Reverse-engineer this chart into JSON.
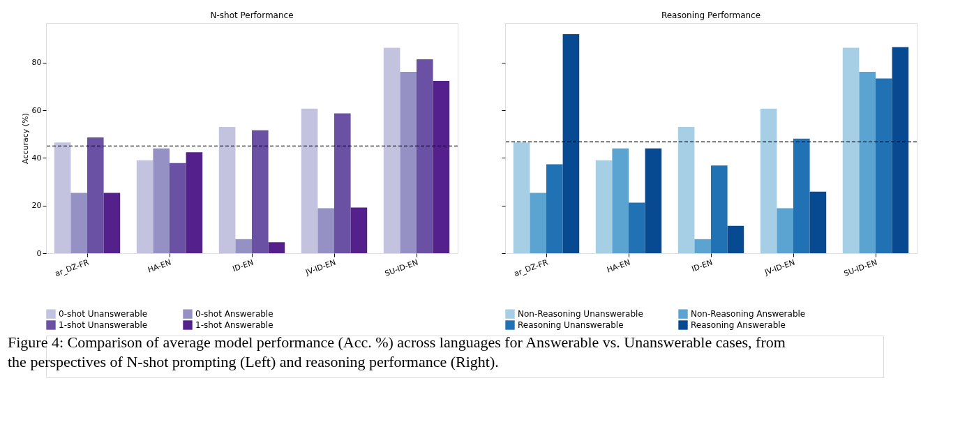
{
  "chart_data": [
    {
      "type": "bar",
      "title": "N-shot Performance",
      "ylabel": "Accuracy (%)",
      "categories": [
        "ar_DZ-FR",
        "HA-EN",
        "ID-EN",
        "JV-ID-EN",
        "SU-ID-EN"
      ],
      "series": [
        {
          "name": "0-shot Unanswerable",
          "color": "#c3c3e0",
          "values": [
            46.5,
            39.0,
            53.0,
            60.7,
            86.2
          ]
        },
        {
          "name": "0-shot Answerable",
          "color": "#9591c4",
          "values": [
            25.3,
            44.0,
            5.9,
            18.9,
            76.1
          ]
        },
        {
          "name": "1-shot Unanswerable",
          "color": "#6a51a3",
          "values": [
            48.6,
            37.8,
            51.6,
            58.7,
            81.4
          ]
        },
        {
          "name": "1-shot Answerable",
          "color": "#54208c",
          "values": [
            25.3,
            42.4,
            4.6,
            19.2,
            72.3
          ]
        }
      ],
      "ylim": [
        0,
        96.6
      ],
      "yticks": [
        0,
        20,
        40,
        60,
        80
      ],
      "ref_lines": [
        {
          "axis": "y",
          "value": 45.0,
          "color": "#000000",
          "line_style": "dashed"
        }
      ],
      "legend": "bottom",
      "grid": false,
      "annotations": [
        "Figure 4: Comparison of average model performance (Acc. %) across languages for Answerable vs. Unanswerable cases, from the perspectives of N-shot prompting (Left) and reasoning performance (Right)."
      ]
    },
    {
      "type": "bar",
      "title": "Reasoning Performance",
      "categories": [
        "ar_DZ-FR",
        "HA-EN",
        "ID-EN",
        "JV-ID-EN",
        "SU-ID-EN"
      ],
      "series": [
        {
          "name": "Non-Reasoning Unanswerable",
          "color": "#a6cee4",
          "values": [
            46.5,
            39.0,
            53.0,
            60.7,
            86.2
          ]
        },
        {
          "name": "Non-Reasoning Answerable",
          "color": "#5ba3d0",
          "values": [
            25.3,
            44.0,
            5.9,
            18.9,
            76.1
          ]
        },
        {
          "name": "Reasoning Unanswerable",
          "color": "#2171b5",
          "values": [
            37.3,
            21.2,
            36.8,
            48.1,
            73.3
          ]
        },
        {
          "name": "Reasoning Answerable",
          "color": "#084a91",
          "values": [
            91.9,
            44.0,
            11.5,
            25.8,
            86.5
          ]
        }
      ],
      "ylim": [
        0,
        96.6
      ],
      "yticks": [
        0,
        20,
        40,
        60,
        80
      ],
      "tick_labels": "x",
      "ref_lines": [
        {
          "axis": "y",
          "value": 46.7,
          "color": "#000000",
          "line_style": "dashed"
        }
      ],
      "legend": "bottom",
      "grid": false
    }
  ]
}
